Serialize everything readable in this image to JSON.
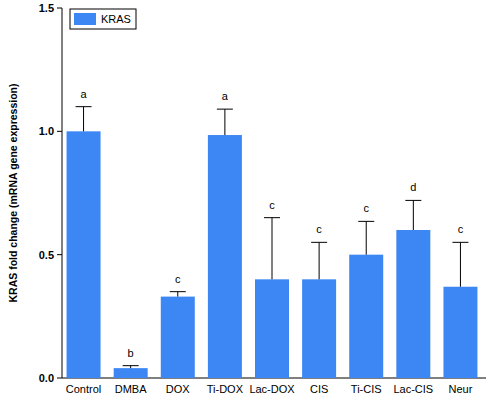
{
  "chart_data": {
    "type": "bar",
    "ylabel": "KRAS fold change (mRNA gene expression)",
    "categories": [
      "Control",
      "DMBA",
      "DOX",
      "Ti-DOX",
      "Lac-DOX",
      "CIS",
      "Ti-CIS",
      "Lac-CIS",
      "Neur"
    ],
    "series": [
      {
        "name": "KRAS",
        "color": "#3d87f5",
        "values": [
          1.0,
          0.04,
          0.33,
          0.985,
          0.4,
          0.4,
          0.5,
          0.6,
          0.37
        ],
        "errors": [
          0.1,
          0.01,
          0.02,
          0.105,
          0.25,
          0.15,
          0.135,
          0.12,
          0.18
        ]
      }
    ],
    "annotations": [
      "a",
      "b",
      "c",
      "a",
      "c",
      "c",
      "c",
      "d",
      "c"
    ],
    "ylim": [
      0,
      1.5
    ],
    "yticks": [
      {
        "value": 0,
        "label": "0.0"
      },
      {
        "value": 0.5,
        "label": "0.5"
      },
      {
        "value": 1.0,
        "label": "1.0"
      },
      {
        "value": 1.5,
        "label": "1.5"
      }
    ],
    "grid": false,
    "legend": "upper left"
  }
}
